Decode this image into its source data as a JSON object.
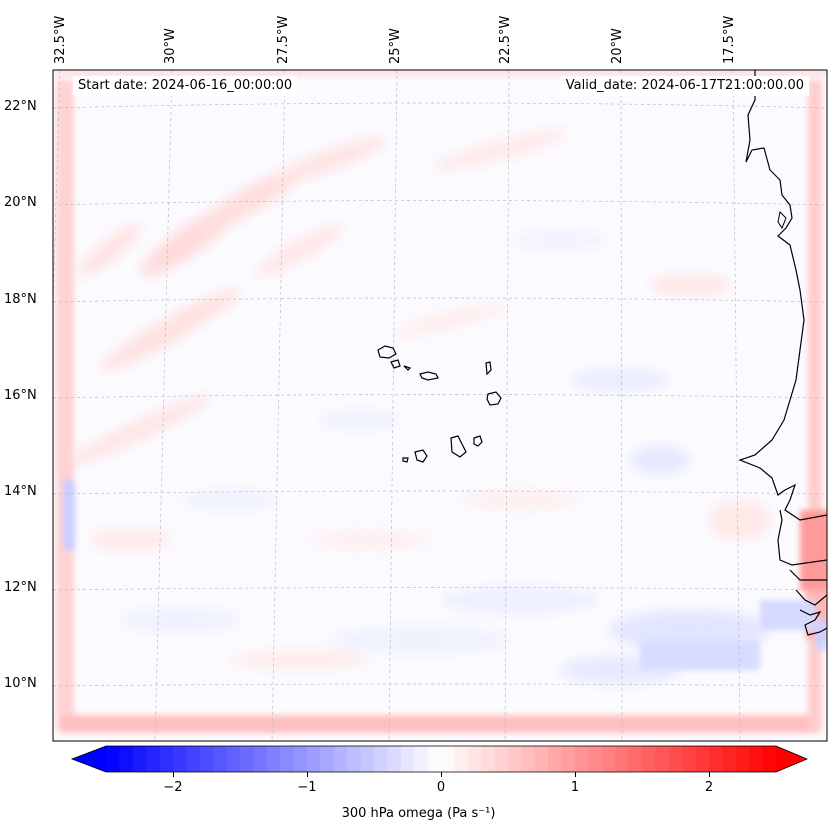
{
  "map": {
    "lon_labels": [
      "32.5°W",
      "30°W",
      "27.5°W",
      "25°W",
      "22.5°W",
      "20°W",
      "17.5°W"
    ],
    "lat_labels": [
      "22°N",
      "20°N",
      "18°N",
      "16°N",
      "14°N",
      "12°N",
      "10°N"
    ],
    "start_date": "Start date: 2024-06-16_00:00:00",
    "valid_date": "Valid_date: 2024-06-17T21:00:00.00",
    "variable": "300 hPa omega",
    "units": "Pa s⁻¹"
  },
  "colorbar": {
    "ticks": [
      "−2",
      "−1",
      "0",
      "1",
      "2"
    ],
    "tick_values": [
      -2,
      -1,
      0,
      1,
      2
    ],
    "range": [
      -2.5,
      2.5
    ],
    "label": "300 hPa omega (Pa s⁻¹)",
    "colormap": "bwr",
    "low_color": "#0000ff",
    "mid_color": "#ffffff",
    "high_color": "#ff0000"
  }
}
